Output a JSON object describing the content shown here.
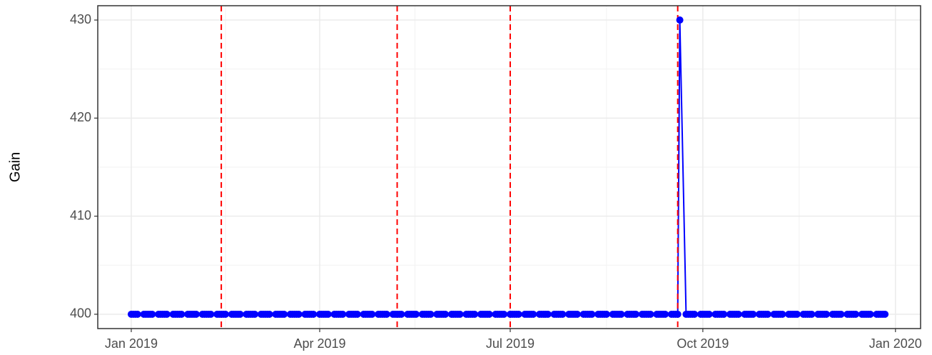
{
  "chart_data": {
    "type": "line",
    "y_label": "Gain",
    "color": "#0000ff",
    "xlim": [
      "2018-12-16",
      "2020-01-13"
    ],
    "xticks": [
      {
        "value": "2019-01-01",
        "label": "Jan 2019"
      },
      {
        "value": "2019-04-01",
        "label": "Apr 2019"
      },
      {
        "value": "2019-07-01",
        "label": "Jul 2019"
      },
      {
        "value": "2019-10-01",
        "label": "Oct 2019"
      },
      {
        "value": "2020-01-01",
        "label": "Jan 2020"
      }
    ],
    "ylim": [
      398.54,
      431.46
    ],
    "yticks": [
      400,
      410,
      420,
      430
    ],
    "grid": true,
    "vlines": {
      "color": "#ff0000",
      "style": "dashed",
      "x": [
        "2019-02-13",
        "2019-05-08",
        "2019-07-01",
        "2019-09-19"
      ]
    },
    "x": [
      "2019-01-01",
      "2019-01-02",
      "2019-01-03",
      "2019-01-04",
      "2019-01-07",
      "2019-01-08",
      "2019-01-09",
      "2019-01-10",
      "2019-01-11",
      "2019-01-14",
      "2019-01-15",
      "2019-01-16",
      "2019-01-17",
      "2019-01-18",
      "2019-01-21",
      "2019-01-22",
      "2019-01-23",
      "2019-01-24",
      "2019-01-25",
      "2019-01-28",
      "2019-01-29",
      "2019-01-30",
      "2019-01-31",
      "2019-02-01",
      "2019-02-04",
      "2019-02-05",
      "2019-02-06",
      "2019-02-07",
      "2019-02-08",
      "2019-02-11",
      "2019-02-12",
      "2019-02-13",
      "2019-02-14",
      "2019-02-15",
      "2019-02-18",
      "2019-02-19",
      "2019-02-20",
      "2019-02-21",
      "2019-02-22",
      "2019-02-25",
      "2019-02-26",
      "2019-02-27",
      "2019-02-28",
      "2019-03-01",
      "2019-03-04",
      "2019-03-05",
      "2019-03-06",
      "2019-03-07",
      "2019-03-08",
      "2019-03-11",
      "2019-03-12",
      "2019-03-13",
      "2019-03-14",
      "2019-03-15",
      "2019-03-18",
      "2019-03-19",
      "2019-03-20",
      "2019-03-21",
      "2019-03-22",
      "2019-03-25",
      "2019-03-26",
      "2019-03-27",
      "2019-03-28",
      "2019-03-29",
      "2019-04-01",
      "2019-04-02",
      "2019-04-03",
      "2019-04-04",
      "2019-04-05",
      "2019-04-08",
      "2019-04-09",
      "2019-04-10",
      "2019-04-11",
      "2019-04-12",
      "2019-04-15",
      "2019-04-16",
      "2019-04-17",
      "2019-04-18",
      "2019-04-19",
      "2019-04-22",
      "2019-04-23",
      "2019-04-24",
      "2019-04-25",
      "2019-04-26",
      "2019-04-29",
      "2019-04-30",
      "2019-05-01",
      "2019-05-02",
      "2019-05-03",
      "2019-05-06",
      "2019-05-07",
      "2019-05-08",
      "2019-05-09",
      "2019-05-10",
      "2019-05-13",
      "2019-05-14",
      "2019-05-15",
      "2019-05-16",
      "2019-05-17",
      "2019-05-20",
      "2019-05-21",
      "2019-05-22",
      "2019-05-23",
      "2019-05-24",
      "2019-05-27",
      "2019-05-28",
      "2019-05-29",
      "2019-05-30",
      "2019-05-31",
      "2019-06-03",
      "2019-06-04",
      "2019-06-05",
      "2019-06-06",
      "2019-06-07",
      "2019-06-10",
      "2019-06-11",
      "2019-06-12",
      "2019-06-13",
      "2019-06-14",
      "2019-06-17",
      "2019-06-18",
      "2019-06-19",
      "2019-06-20",
      "2019-06-21",
      "2019-06-24",
      "2019-06-25",
      "2019-06-26",
      "2019-06-27",
      "2019-06-28",
      "2019-07-01",
      "2019-07-02",
      "2019-07-03",
      "2019-07-04",
      "2019-07-05",
      "2019-07-08",
      "2019-07-09",
      "2019-07-10",
      "2019-07-11",
      "2019-07-12",
      "2019-07-15",
      "2019-07-16",
      "2019-07-17",
      "2019-07-18",
      "2019-07-19",
      "2019-07-22",
      "2019-07-23",
      "2019-07-24",
      "2019-07-25",
      "2019-07-26",
      "2019-07-29",
      "2019-07-30",
      "2019-07-31",
      "2019-08-01",
      "2019-08-02",
      "2019-08-05",
      "2019-08-06",
      "2019-08-07",
      "2019-08-08",
      "2019-08-09",
      "2019-08-12",
      "2019-08-13",
      "2019-08-14",
      "2019-08-15",
      "2019-08-16",
      "2019-08-19",
      "2019-08-20",
      "2019-08-21",
      "2019-08-22",
      "2019-08-23",
      "2019-08-26",
      "2019-08-27",
      "2019-08-28",
      "2019-08-29",
      "2019-08-30",
      "2019-09-02",
      "2019-09-03",
      "2019-09-04",
      "2019-09-05",
      "2019-09-06",
      "2019-09-09",
      "2019-09-10",
      "2019-09-11",
      "2019-09-12",
      "2019-09-13",
      "2019-09-16",
      "2019-09-17",
      "2019-09-18",
      "2019-09-19",
      "2019-09-20",
      "2019-09-23",
      "2019-09-24",
      "2019-09-25",
      "2019-09-26",
      "2019-09-27",
      "2019-09-30",
      "2019-10-01",
      "2019-10-02",
      "2019-10-03",
      "2019-10-04",
      "2019-10-07",
      "2019-10-08",
      "2019-10-09",
      "2019-10-10",
      "2019-10-11",
      "2019-10-14",
      "2019-10-15",
      "2019-10-16",
      "2019-10-17",
      "2019-10-18",
      "2019-10-21",
      "2019-10-22",
      "2019-10-23",
      "2019-10-24",
      "2019-10-25",
      "2019-10-28",
      "2019-10-29",
      "2019-10-30",
      "2019-10-31",
      "2019-11-01",
      "2019-11-04",
      "2019-11-05",
      "2019-11-06",
      "2019-11-07",
      "2019-11-08",
      "2019-11-11",
      "2019-11-12",
      "2019-11-13",
      "2019-11-14",
      "2019-11-15",
      "2019-11-18",
      "2019-11-19",
      "2019-11-20",
      "2019-11-21",
      "2019-11-22",
      "2019-11-25",
      "2019-11-26",
      "2019-11-27",
      "2019-11-28",
      "2019-11-29",
      "2019-12-02",
      "2019-12-03",
      "2019-12-04",
      "2019-12-05",
      "2019-12-06",
      "2019-12-09",
      "2019-12-10",
      "2019-12-11",
      "2019-12-12",
      "2019-12-13",
      "2019-12-16",
      "2019-12-17",
      "2019-12-18",
      "2019-12-19",
      "2019-12-20",
      "2019-12-23",
      "2019-12-24",
      "2019-12-25",
      "2019-12-26",
      "2019-12-27"
    ],
    "values": [
      400,
      400,
      400,
      400,
      400,
      400,
      400,
      400,
      400,
      400,
      400,
      400,
      400,
      400,
      400,
      400,
      400,
      400,
      400,
      400,
      400,
      400,
      400,
      400,
      400,
      400,
      400,
      400,
      400,
      400,
      400,
      400,
      400,
      400,
      400,
      400,
      400,
      400,
      400,
      400,
      400,
      400,
      400,
      400,
      400,
      400,
      400,
      400,
      400,
      400,
      400,
      400,
      400,
      400,
      400,
      400,
      400,
      400,
      400,
      400,
      400,
      400,
      400,
      400,
      400,
      400,
      400,
      400,
      400,
      400,
      400,
      400,
      400,
      400,
      400,
      400,
      400,
      400,
      400,
      400,
      400,
      400,
      400,
      400,
      400,
      400,
      400,
      400,
      400,
      400,
      400,
      400,
      400,
      400,
      400,
      400,
      400,
      400,
      400,
      400,
      400,
      400,
      400,
      400,
      400,
      400,
      400,
      400,
      400,
      400,
      400,
      400,
      400,
      400,
      400,
      400,
      400,
      400,
      400,
      400,
      400,
      400,
      400,
      400,
      400,
      400,
      400,
      400,
      400,
      400,
      400,
      400,
      400,
      400,
      400,
      400,
      400,
      400,
      400,
      400,
      400,
      400,
      400,
      400,
      400,
      400,
      400,
      400,
      400,
      400,
      400,
      400,
      400,
      400,
      400,
      400,
      400,
      400,
      400,
      400,
      400,
      400,
      400,
      400,
      400,
      400,
      400,
      400,
      400,
      400,
      400,
      400,
      400,
      400,
      400,
      400,
      400,
      400,
      400,
      400,
      400,
      400,
      400,
      400,
      400,
      400,
      400,
      400,
      430,
      400,
      400,
      400,
      400,
      400,
      400,
      400,
      400,
      400,
      400,
      400,
      400,
      400,
      400,
      400,
      400,
      400,
      400,
      400,
      400,
      400,
      400,
      400,
      400,
      400,
      400,
      400,
      400,
      400,
      400,
      400,
      400,
      400,
      400,
      400,
      400,
      400,
      400,
      400,
      400,
      400,
      400,
      400,
      400,
      400,
      400,
      400,
      400,
      400,
      400,
      400,
      400,
      400,
      400,
      400,
      400,
      400,
      400,
      400,
      400,
      400,
      400,
      400,
      400,
      400,
      400,
      400,
      400,
      400,
      400
    ]
  }
}
